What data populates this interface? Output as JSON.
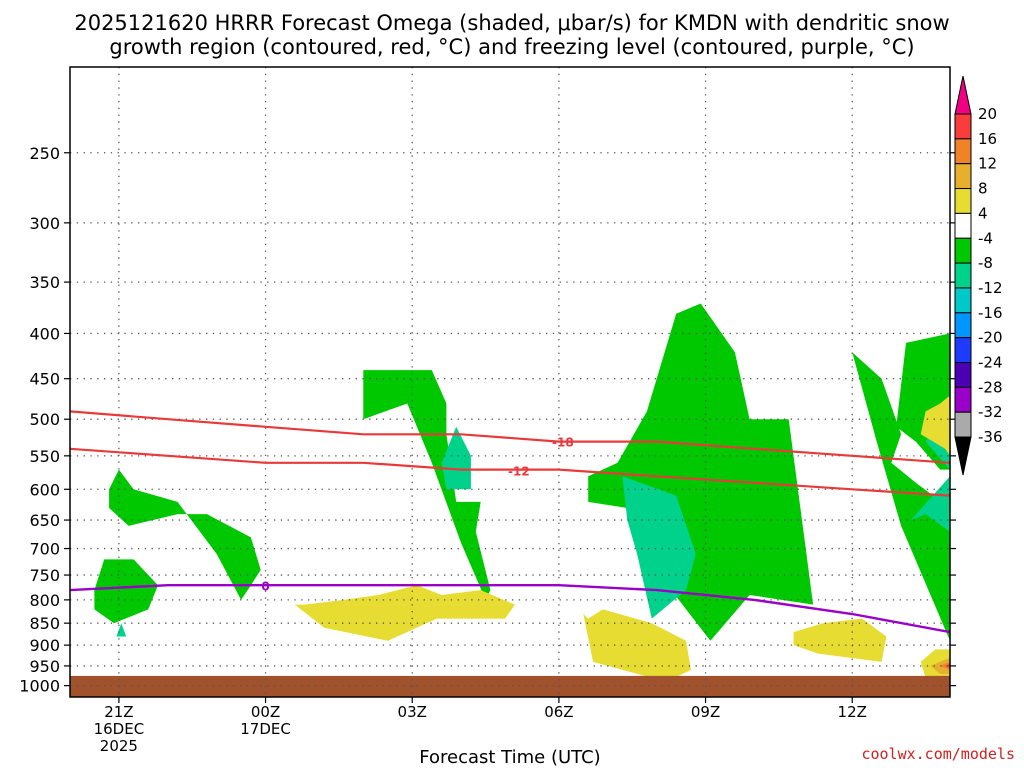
{
  "chart_data": {
    "type": "time-height cross section",
    "title_lines": [
      "2025121620 HRRR Forecast Omega (shaded, μbar/s) for KMDN with dendritic snow",
      "growth region (contoured, red, °C) and freezing level (contoured, purple, °C)"
    ],
    "xlabel": "Forecast Time (UTC)",
    "x_unit": "hours since 2025-12-16 20Z",
    "xlim": [
      0,
      18
    ],
    "x_ticks": [
      {
        "x": 1,
        "lines": [
          "21Z",
          "16DEC",
          "2025"
        ]
      },
      {
        "x": 4,
        "lines": [
          "00Z",
          "17DEC"
        ]
      },
      {
        "x": 7,
        "lines": [
          "03Z"
        ]
      },
      {
        "x": 10,
        "lines": [
          "06Z"
        ]
      },
      {
        "x": 13,
        "lines": [
          "09Z"
        ]
      },
      {
        "x": 16,
        "lines": [
          "12Z"
        ]
      }
    ],
    "y_ticks": [
      250,
      300,
      350,
      400,
      450,
      500,
      550,
      600,
      650,
      700,
      750,
      800,
      850,
      900,
      950,
      1000
    ],
    "ylim_hpa": [
      200,
      1030
    ],
    "y_scale": "log-pressure",
    "ground_hpa": 975,
    "ground_color": "#a0522d",
    "grid": "dotted",
    "colorbar": {
      "levels": [
        -36,
        -32,
        -28,
        -24,
        -20,
        -16,
        -12,
        -8,
        -4,
        4,
        8,
        12,
        16,
        20
      ],
      "colors": [
        "#000000",
        "#aaaaaa",
        "#9a00c8",
        "#4b00b4",
        "#1e3cff",
        "#0096ff",
        "#00c8c8",
        "#00d28c",
        "#00c800",
        "#ffffff",
        "#e6dc32",
        "#e6af2d",
        "#f08228",
        "#fa3c3c",
        "#f00082"
      ],
      "top_arrow_color": "#f00082",
      "bottom_arrow_color": "#000000"
    },
    "shaded_regions": [
      {
        "level": -4,
        "color": "#00c800",
        "points": [
          [
            1,
            -57
          ],
          [
            1.3,
            -60
          ],
          [
            2.2,
            -62
          ],
          [
            3,
            -71
          ],
          [
            3.5,
            -80
          ],
          [
            3.7,
            -77
          ],
          [
            3.9,
            -74
          ],
          [
            3.7,
            -68
          ],
          [
            2.8,
            -64
          ],
          [
            2.2,
            -64
          ],
          [
            1.2,
            -66
          ],
          [
            0.8,
            -63
          ],
          [
            0.8,
            -60
          ]
        ]
      },
      {
        "level": -4,
        "color": "#00c800",
        "points": [
          [
            6,
            -50
          ],
          [
            6.9,
            -48
          ],
          [
            7.4,
            -56
          ],
          [
            8,
            -69
          ],
          [
            8.5,
            -80
          ],
          [
            8.6,
            -78
          ],
          [
            8.3,
            -67
          ],
          [
            8.4,
            -62
          ],
          [
            7.9,
            -62
          ],
          [
            7.7,
            -52
          ],
          [
            7.7,
            -48
          ],
          [
            7.4,
            -44
          ],
          [
            6,
            -44
          ]
        ]
      },
      {
        "level": -4,
        "color": "#00c800",
        "points": [
          [
            10.6,
            -44
          ],
          [
            10.6,
            -62
          ],
          [
            11.4,
            -63
          ],
          [
            11.9,
            -71
          ],
          [
            12.3,
            -78
          ],
          [
            13.1,
            -89
          ],
          [
            13.9,
            -79
          ],
          [
            15.2,
            -81
          ],
          [
            14.7,
            -50
          ],
          [
            13.9,
            -50
          ],
          [
            13.6,
            -42
          ],
          [
            12.9,
            -37
          ],
          [
            12.4,
            -38
          ],
          [
            11.8,
            -49
          ],
          [
            11.2,
            -56
          ],
          [
            10.6,
            -58
          ]
        ]
      },
      {
        "level": -4,
        "color": "#00c800",
        "points": [
          [
            16,
            -42
          ],
          [
            16.5,
            -53
          ],
          [
            17,
            -66
          ],
          [
            18,
            -89
          ],
          [
            18,
            -63
          ],
          [
            17.3,
            -59
          ],
          [
            16.8,
            -56
          ],
          [
            17,
            -52
          ],
          [
            16.6,
            -45
          ],
          [
            16,
            -42
          ]
        ]
      },
      {
        "level": -4,
        "color": "#00c800",
        "points": [
          [
            16.9,
            -51
          ],
          [
            17.1,
            -41
          ],
          [
            18,
            -40
          ],
          [
            18,
            -57
          ],
          [
            17.8,
            -57
          ],
          [
            17.3,
            -53
          ]
        ]
      },
      {
        "level": -8,
        "color": "#00d28c",
        "points": [
          [
            11.3,
            -58
          ],
          [
            12.4,
            -61
          ],
          [
            12.8,
            -71
          ],
          [
            12.6,
            -78
          ],
          [
            11.9,
            -84
          ],
          [
            11.6,
            -71
          ],
          [
            11.4,
            -65
          ]
        ]
      },
      {
        "level": -8,
        "color": "#00d28c",
        "points": [
          [
            7.7,
            -60
          ],
          [
            8.2,
            -60
          ],
          [
            8.2,
            -55
          ],
          [
            7.9,
            -51
          ],
          [
            7.6,
            -56
          ]
        ]
      },
      {
        "level": -8,
        "color": "#00d28c",
        "points": [
          [
            17.5,
            -53
          ],
          [
            18,
            -57
          ],
          [
            18,
            -53
          ],
          [
            17.8,
            -50
          ]
        ]
      },
      {
        "level": -8,
        "color": "#00d28c",
        "points": [
          [
            17.2,
            -65
          ],
          [
            17.5,
            -64
          ],
          [
            18,
            -67
          ],
          [
            18,
            -58
          ]
        ]
      },
      {
        "level": -4,
        "color": "#00c800",
        "points": [
          [
            0.5,
            -82
          ],
          [
            0.9,
            -85
          ],
          [
            1.6,
            -82
          ],
          [
            1.8,
            -77
          ],
          [
            1.3,
            -72
          ],
          [
            0.7,
            -72
          ],
          [
            0.5,
            -78
          ]
        ]
      },
      {
        "level": 4,
        "color": "#e6dc32",
        "points": [
          [
            4.6,
            -81
          ],
          [
            5.2,
            -86
          ],
          [
            6.5,
            -89
          ],
          [
            7.5,
            -84
          ],
          [
            8.1,
            -84
          ],
          [
            8.9,
            -84
          ],
          [
            9.1,
            -81
          ],
          [
            8.4,
            -78
          ],
          [
            7.6,
            -79
          ],
          [
            7.1,
            -77
          ],
          [
            6.3,
            -79
          ],
          [
            5.6,
            -80
          ],
          [
            4.8,
            -81
          ]
        ]
      },
      {
        "level": 4,
        "color": "#e6dc32",
        "points": [
          [
            10.5,
            -83
          ],
          [
            10.7,
            -94
          ],
          [
            12.2,
            -99
          ],
          [
            12.7,
            -96
          ],
          [
            12.6,
            -89
          ],
          [
            11.9,
            -85
          ],
          [
            10.9,
            -82
          ],
          [
            10.6,
            -84
          ]
        ]
      },
      {
        "level": 4,
        "color": "#e6dc32",
        "points": [
          [
            14.8,
            -90
          ],
          [
            15.3,
            -92
          ],
          [
            16.6,
            -94
          ],
          [
            16.7,
            -88
          ],
          [
            16.2,
            -84
          ],
          [
            15.4,
            -85
          ],
          [
            14.8,
            -87
          ]
        ]
      },
      {
        "level": 4,
        "color": "#e6dc32",
        "points": [
          [
            17.5,
            -49
          ],
          [
            17.8,
            -48
          ],
          [
            18,
            -47
          ],
          [
            18,
            -55
          ],
          [
            17.9,
            -54
          ],
          [
            17.4,
            -52
          ]
        ]
      },
      {
        "level": 4,
        "color": "#e6dc32",
        "points": [
          [
            17.4,
            -94
          ],
          [
            17.5,
            -98
          ],
          [
            18,
            -99
          ],
          [
            18,
            -91
          ],
          [
            17.7,
            -91
          ]
        ]
      },
      {
        "level": 12,
        "color": "#e6af2d",
        "points": [
          [
            17.6,
            -95
          ],
          [
            17.8,
            -97
          ],
          [
            18,
            -97
          ],
          [
            18,
            -93
          ]
        ]
      },
      {
        "level": 16,
        "color": "#f08228",
        "points": [
          [
            17.8,
            -95
          ],
          [
            18,
            -96
          ],
          [
            18,
            -94
          ]
        ]
      },
      {
        "level": 20,
        "color": "#fa3c3c",
        "points": [
          [
            17.9,
            -95
          ],
          [
            18,
            -95.5
          ],
          [
            18,
            -94.5
          ]
        ]
      },
      {
        "level": -8,
        "color": "#00d28c",
        "points": [
          [
            0.95,
            -88
          ],
          [
            1.05,
            -85
          ],
          [
            1.15,
            -88
          ]
        ]
      }
    ],
    "red_contours": [
      {
        "label": "-18",
        "color": "#e83a3a",
        "points": [
          [
            0,
            -49
          ],
          [
            2,
            -50
          ],
          [
            4,
            -51
          ],
          [
            6,
            -52
          ],
          [
            8,
            -52
          ],
          [
            10,
            -53
          ],
          [
            12,
            -53
          ],
          [
            14,
            -54
          ],
          [
            16,
            -55
          ],
          [
            18,
            -56
          ]
        ]
      },
      {
        "label": "-12",
        "color": "#e83a3a",
        "points": [
          [
            0,
            -54
          ],
          [
            2,
            -55
          ],
          [
            4,
            -56
          ],
          [
            6,
            -56
          ],
          [
            8,
            -57
          ],
          [
            10,
            -57
          ],
          [
            12,
            -58
          ],
          [
            14,
            -59
          ],
          [
            16,
            -60
          ],
          [
            18,
            -61
          ]
        ]
      }
    ],
    "purple_contour": {
      "label": "0",
      "color": "#9a00c8",
      "points": [
        [
          0,
          -78
        ],
        [
          2,
          -77
        ],
        [
          4,
          -77
        ],
        [
          6,
          -77
        ],
        [
          8,
          -77
        ],
        [
          10,
          -77
        ],
        [
          12,
          -78
        ],
        [
          14,
          -80
        ],
        [
          16,
          -83
        ],
        [
          18,
          -87
        ]
      ]
    },
    "credit": "coolwx.com/models"
  }
}
